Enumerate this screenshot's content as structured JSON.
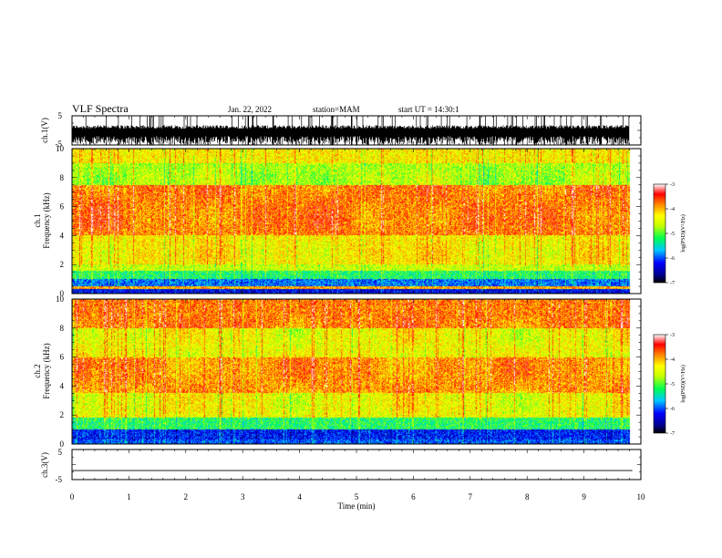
{
  "header": {
    "title": "VLF Spectra",
    "date": "Jan. 22, 2022",
    "station": "station=MAM",
    "start": "start UT =  14:30:1"
  },
  "chart_data": [
    {
      "type": "line",
      "panel": "ch1-waveform",
      "ylabel": "ch.1(V)",
      "ylim": [
        -5,
        5
      ],
      "yticks": [
        5,
        -5
      ],
      "xlim": [
        0,
        10
      ]
    },
    {
      "type": "heatmap",
      "panel": "ch1-spectrogram",
      "ylabel_line1": "ch.1",
      "ylabel_line2": "Frequency (kHz)",
      "ylim": [
        0,
        10
      ],
      "yticks": [
        0,
        2,
        4,
        6,
        8,
        10
      ],
      "xlim": [
        0,
        10
      ],
      "data_end_min": 9.8,
      "band_levels": [
        {
          "f": [
            0,
            0.3
          ],
          "level": -6.3
        },
        {
          "f": [
            0.3,
            0.5
          ],
          "level": -4.0
        },
        {
          "f": [
            0.5,
            1.0
          ],
          "level": -5.9
        },
        {
          "f": [
            1.0,
            1.6
          ],
          "level": -5.2
        },
        {
          "f": [
            1.6,
            2.0
          ],
          "level": -4.6
        },
        {
          "f": [
            2.0,
            4.0
          ],
          "level": -4.3
        },
        {
          "f": [
            4.0,
            7.5
          ],
          "level": -3.8
        },
        {
          "f": [
            7.5,
            9.0
          ],
          "level": -4.7
        },
        {
          "f": [
            9.0,
            10.0
          ],
          "level": -4.3
        }
      ]
    },
    {
      "type": "heatmap",
      "panel": "ch2-spectrogram",
      "ylabel_line1": "ch.2",
      "ylabel_line2": "Frequency (kHz)",
      "ylim": [
        0,
        10
      ],
      "yticks": [
        0,
        2,
        4,
        6,
        8,
        10
      ],
      "xlim": [
        0,
        10
      ],
      "data_end_min": 9.8,
      "band_levels": [
        {
          "f": [
            0,
            0.3
          ],
          "level": -6.0
        },
        {
          "f": [
            0.3,
            1.0
          ],
          "level": -6.2
        },
        {
          "f": [
            1.0,
            1.8
          ],
          "level": -5.2
        },
        {
          "f": [
            1.8,
            3.5
          ],
          "level": -4.4
        },
        {
          "f": [
            3.5,
            6.0
          ],
          "level": -3.9
        },
        {
          "f": [
            6.0,
            8.0
          ],
          "level": -4.4
        },
        {
          "f": [
            8.0,
            10.0
          ],
          "level": -3.8
        }
      ]
    },
    {
      "type": "line",
      "panel": "ch3-waveform",
      "ylabel": "ch.3(V)",
      "ylim": [
        -5,
        5
      ],
      "yticks": [
        5,
        -5
      ],
      "xlim": [
        0,
        10
      ],
      "y_constant": -2,
      "xlabel": "Time (min)",
      "xticks": [
        0,
        1,
        2,
        3,
        4,
        5,
        6,
        7,
        8,
        9,
        10
      ]
    }
  ],
  "colorbar": {
    "label": "log(PSD)(V²/Hz)",
    "ticks": [
      -3,
      -4,
      -5,
      -6,
      -7
    ],
    "range": [
      -7,
      -3
    ]
  },
  "colors": {
    "ink": "#000000",
    "background": "#ffffff"
  }
}
